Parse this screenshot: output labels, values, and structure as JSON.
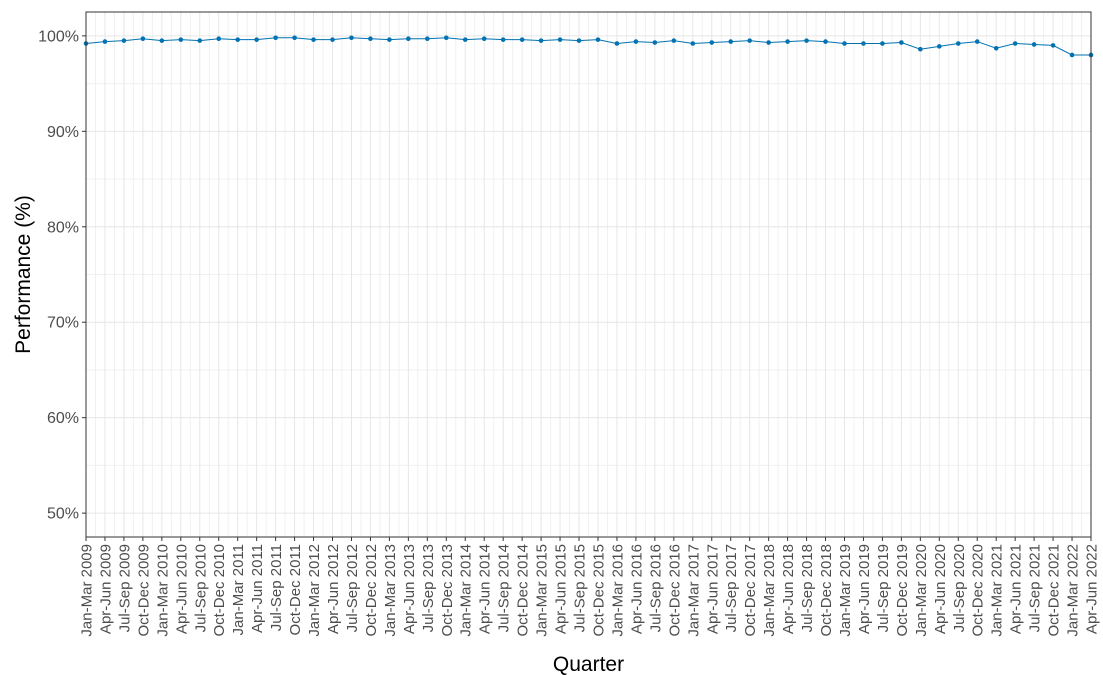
{
  "chart_data": {
    "type": "line",
    "title": "",
    "xlabel": "Quarter",
    "ylabel": "Performance (%)",
    "ylim": [
      47.5,
      102.5
    ],
    "yticks": [
      50,
      60,
      70,
      80,
      90,
      100
    ],
    "ytick_labels": [
      "50%",
      "60%",
      "70%",
      "80%",
      "90%",
      "100%"
    ],
    "grid": true,
    "legend": "none",
    "series_color": "#0072B2",
    "categories": [
      "Jan-Mar 2009",
      "Apr-Jun 2009",
      "Jul-Sep 2009",
      "Oct-Dec 2009",
      "Jan-Mar 2010",
      "Apr-Jun 2010",
      "Jul-Sep 2010",
      "Oct-Dec 2010",
      "Jan-Mar 2011",
      "Apr-Jun 2011",
      "Jul-Sep 2011",
      "Oct-Dec 2011",
      "Jan-Mar 2012",
      "Apr-Jun 2012",
      "Jul-Sep 2012",
      "Oct-Dec 2012",
      "Jan-Mar 2013",
      "Apr-Jun 2013",
      "Jul-Sep 2013",
      "Oct-Dec 2013",
      "Jan-Mar 2014",
      "Apr-Jun 2014",
      "Jul-Sep 2014",
      "Oct-Dec 2014",
      "Jan-Mar 2015",
      "Apr-Jun 2015",
      "Jul-Sep 2015",
      "Oct-Dec 2015",
      "Jan-Mar 2016",
      "Apr-Jun 2016",
      "Jul-Sep 2016",
      "Oct-Dec 2016",
      "Jan-Mar 2017",
      "Apr-Jun 2017",
      "Jul-Sep 2017",
      "Oct-Dec 2017",
      "Jan-Mar 2018",
      "Apr-Jun 2018",
      "Jul-Sep 2018",
      "Oct-Dec 2018",
      "Jan-Mar 2019",
      "Apr-Jun 2019",
      "Jul-Sep 2019",
      "Oct-Dec 2019",
      "Jan-Mar 2020",
      "Apr-Jun 2020",
      "Jul-Sep 2020",
      "Oct-Dec 2020",
      "Jan-Mar 2021",
      "Apr-Jun 2021",
      "Jul-Sep 2021",
      "Oct-Dec 2021",
      "Jan-Mar 2022",
      "Apr-Jun 2022"
    ],
    "series": [
      {
        "values": [
          99.2,
          99.4,
          99.5,
          99.7,
          99.5,
          99.6,
          99.5,
          99.7,
          99.6,
          99.6,
          99.8,
          99.8,
          99.6,
          99.6,
          99.8,
          99.7,
          99.6,
          99.7,
          99.7,
          99.8,
          99.6,
          99.7,
          99.6,
          99.6,
          99.5,
          99.6,
          99.5,
          99.6,
          99.2,
          99.4,
          99.3,
          99.5,
          99.2,
          99.3,
          99.4,
          99.5,
          99.3,
          99.4,
          99.5,
          99.4,
          99.2,
          99.2,
          99.2,
          99.3,
          98.6,
          98.9,
          99.2,
          99.4,
          98.7,
          99.2,
          99.1,
          99.0,
          98.0,
          98.0
        ]
      }
    ]
  }
}
